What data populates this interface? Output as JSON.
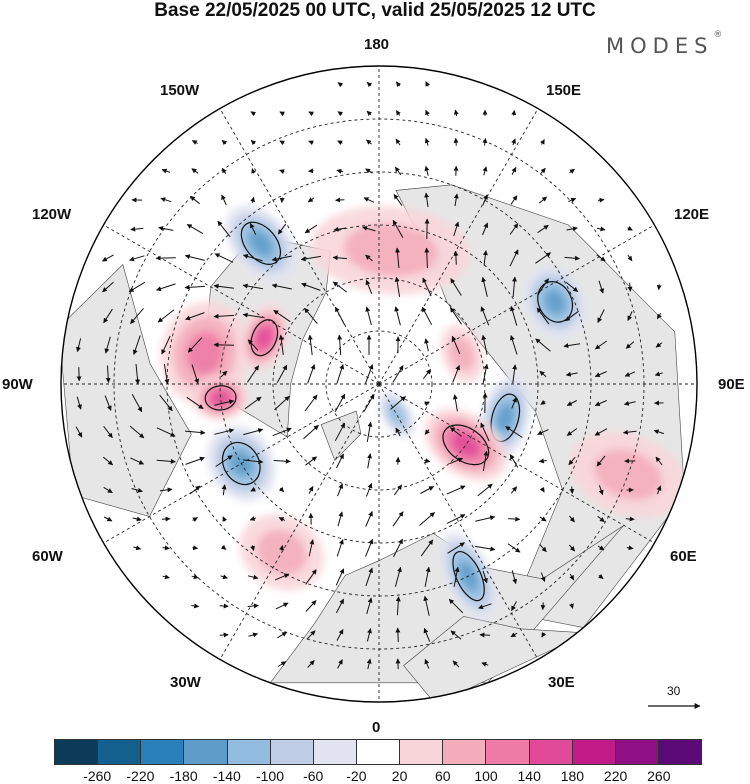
{
  "title": "Base 22/05/2025 00 UTC, valid 25/05/2025 12 UTC",
  "brand": {
    "name": "MODES",
    "mark": "®"
  },
  "longitude_labels": {
    "north": "180",
    "south": "0",
    "east": "90E",
    "west": "90W",
    "ne_outer": "150E",
    "ne_inner": "120E",
    "se_inner": "60E",
    "se_outer": "30E",
    "nw_outer": "150W",
    "nw_inner": "120W",
    "sw_inner": "60W",
    "sw_outer": "30W"
  },
  "reference_vector": {
    "label": "30"
  },
  "colorbar": {
    "colors": [
      "#0c3b5a",
      "#13608f",
      "#2a80ba",
      "#5e9dc9",
      "#93bde0",
      "#bfcde6",
      "#e2e4f2",
      "#ffffff",
      "#f9d6da",
      "#f4adbb",
      "#ee7ca6",
      "#e14a98",
      "#c21b88",
      "#8f0f85",
      "#5c0a78"
    ],
    "labels": [
      "-260",
      "-220",
      "-180",
      "-140",
      "-100",
      "-60",
      "-20",
      "20",
      "60",
      "100",
      "140",
      "180",
      "220",
      "260"
    ]
  },
  "anomaly_centers": [
    {
      "sign": "neg",
      "level": 3,
      "lon": -140,
      "colat": 52,
      "rx": 28,
      "ry": 44
    },
    {
      "sign": "neg",
      "level": 3,
      "lon": 115,
      "colat": 55,
      "rx": 38,
      "ry": 30
    },
    {
      "sign": "neg",
      "level": 3,
      "lon": 75,
      "colat": 37,
      "rx": 44,
      "ry": 24
    },
    {
      "sign": "neg",
      "level": 3,
      "lon": -60,
      "colat": 45,
      "rx": 40,
      "ry": 32
    },
    {
      "sign": "neg",
      "level": 3,
      "lon": 25,
      "colat": 60,
      "rx": 22,
      "ry": 48
    },
    {
      "sign": "neg",
      "level": 2,
      "lon": 30,
      "colat": 10,
      "rx": 14,
      "ry": 26
    },
    {
      "sign": "neg",
      "level": 1,
      "lon": 155,
      "colat": 38,
      "rx": 16,
      "ry": 20
    },
    {
      "sign": "pos",
      "level": 2,
      "lon": -100,
      "colat": 50,
      "rx": 52,
      "ry": 44
    },
    {
      "sign": "pos",
      "level": 3,
      "lon": -112,
      "colat": 35,
      "rx": 34,
      "ry": 22
    },
    {
      "sign": "pos",
      "level": 3,
      "lon": -85,
      "colat": 45,
      "rx": 22,
      "ry": 28
    },
    {
      "sign": "pos",
      "level": 3,
      "lon": 55,
      "colat": 30,
      "rx": 30,
      "ry": 46
    },
    {
      "sign": "pos",
      "level": 1,
      "lon": 110,
      "colat": 25,
      "rx": 30,
      "ry": 20
    },
    {
      "sign": "pos",
      "level": 1,
      "lon": 175,
      "colat": 38,
      "rx": 80,
      "ry": 44
    },
    {
      "sign": "pos",
      "level": 1,
      "lon": -30,
      "colat": 55,
      "rx": 44,
      "ry": 36
    },
    {
      "sign": "pos",
      "level": 1,
      "lon": 70,
      "colat": 75,
      "rx": 40,
      "ry": 60
    }
  ]
}
